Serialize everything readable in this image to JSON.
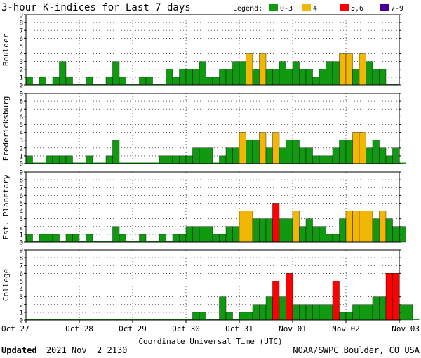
{
  "title": "3-hour K-indices for Last 7 days",
  "legend": {
    "label": "Legend:",
    "items": [
      {
        "label": "0-3",
        "color": "#119911"
      },
      {
        "label": "4",
        "color": "#f2b705"
      },
      {
        "label": "5,6",
        "color": "#ff0000"
      },
      {
        "label": "7-9",
        "color": "#440099"
      }
    ]
  },
  "xlabel": "Coordinate Universal Time (UTC)",
  "footer": {
    "updated_label": "Updated",
    "updated_value": "2021 Nov  2 2130",
    "credit": "NOAA/SWPC Boulder, CO USA"
  },
  "chart_data": {
    "type": "bar",
    "x_ticks": [
      "Oct 27",
      "Oct 28",
      "Oct 29",
      "Oct 30",
      "Oct 31",
      "Nov 01",
      "Nov 02",
      "Nov 03"
    ],
    "ylim": [
      0,
      9
    ],
    "y_ticks": [
      0,
      1,
      2,
      3,
      4,
      5,
      6,
      7,
      8,
      9
    ],
    "intervals_per_day": 8,
    "color_rule": {
      "0-3": "#119911",
      "4": "#f2b705",
      "5,6": "#ff0000",
      "7-9": "#440099"
    },
    "panels": [
      {
        "name": "Boulder",
        "values": [
          1,
          0,
          1,
          0,
          1,
          3,
          1,
          0,
          0,
          1,
          0,
          0,
          1,
          3,
          1,
          0,
          0,
          1,
          1,
          0,
          0,
          2,
          1,
          2,
          2,
          2,
          3,
          1,
          1,
          2,
          2,
          3,
          3,
          4,
          2,
          4,
          2,
          2,
          3,
          2,
          3,
          2,
          2,
          1,
          2,
          3,
          3,
          4,
          4,
          2,
          4,
          3,
          2,
          2,
          0,
          0
        ]
      },
      {
        "name": "Fredericksburg",
        "values": [
          1,
          0,
          0,
          1,
          1,
          1,
          1,
          0,
          0,
          1,
          0,
          0,
          1,
          3,
          0,
          0,
          0,
          0,
          0,
          0,
          1,
          1,
          1,
          1,
          1,
          2,
          2,
          2,
          0,
          1,
          2,
          2,
          4,
          3,
          3,
          4,
          2,
          4,
          2,
          3,
          3,
          2,
          2,
          1,
          1,
          1,
          2,
          3,
          3,
          4,
          4,
          2,
          3,
          2,
          1,
          2,
          0
        ]
      },
      {
        "name": "Est. Planetary",
        "values": [
          1,
          0,
          1,
          1,
          1,
          0,
          1,
          1,
          0,
          1,
          0,
          0,
          0,
          2,
          1,
          0,
          0,
          1,
          0,
          0,
          1,
          0,
          1,
          1,
          2,
          2,
          2,
          2,
          1,
          1,
          2,
          2,
          4,
          4,
          3,
          3,
          3,
          5,
          3,
          3,
          4,
          2,
          3,
          2,
          2,
          1,
          1,
          3,
          4,
          4,
          4,
          4,
          3,
          4,
          3,
          2,
          2
        ]
      },
      {
        "name": "College",
        "values": [
          0,
          0,
          0,
          0,
          0,
          0,
          0,
          0,
          0,
          0,
          0,
          0,
          0,
          0,
          0,
          0,
          0,
          0,
          0,
          0,
          0,
          0,
          0,
          0,
          0,
          1,
          1,
          0,
          0,
          3,
          1,
          0,
          1,
          1,
          2,
          2,
          3,
          5,
          3,
          6,
          2,
          2,
          2,
          2,
          2,
          2,
          5,
          1,
          1,
          2,
          2,
          2,
          3,
          3,
          6,
          6,
          2,
          2,
          0
        ]
      }
    ]
  }
}
